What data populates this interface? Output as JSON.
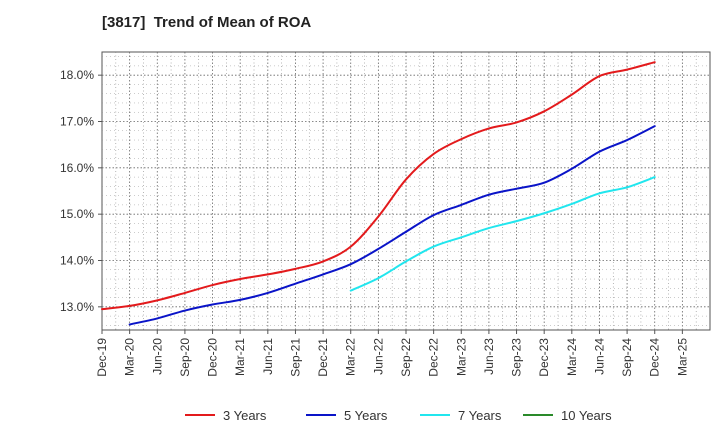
{
  "chart_data": {
    "type": "line",
    "title": "[3817]  Trend of Mean of ROA",
    "y_unit": "%",
    "ylim": [
      12.5,
      18.5
    ],
    "y_ticks": [
      "13.0%",
      "14.0%",
      "15.0%",
      "16.0%",
      "17.0%",
      "18.0%"
    ],
    "y_tick_values": [
      13,
      14,
      15,
      16,
      17,
      18
    ],
    "x_ticks": [
      "Dec-19",
      "Mar-20",
      "Jun-20",
      "Sep-20",
      "Dec-20",
      "Mar-21",
      "Jun-21",
      "Sep-21",
      "Dec-21",
      "Mar-22",
      "Jun-22",
      "Sep-22",
      "Dec-22",
      "Mar-23",
      "Jun-23",
      "Sep-23",
      "Dec-23",
      "Mar-24",
      "Jun-24",
      "Sep-24",
      "Dec-24",
      "Mar-25"
    ],
    "grid": true,
    "legend_position": "bottom",
    "series": [
      {
        "name": "3 Years",
        "color": "#e31a1c",
        "x": [
          "Dec-19",
          "Mar-20",
          "Jun-20",
          "Sep-20",
          "Dec-20",
          "Mar-21",
          "Jun-21",
          "Sep-21",
          "Dec-21",
          "Mar-22",
          "Jun-22",
          "Sep-22",
          "Dec-22",
          "Mar-23",
          "Jun-23",
          "Sep-23",
          "Dec-23",
          "Mar-24",
          "Jun-24",
          "Sep-24",
          "Dec-24"
        ],
        "values": [
          12.95,
          13.02,
          13.14,
          13.3,
          13.47,
          13.6,
          13.7,
          13.82,
          13.98,
          14.3,
          14.95,
          15.75,
          16.3,
          16.62,
          16.85,
          16.98,
          17.22,
          17.58,
          17.98,
          18.12,
          18.28
        ]
      },
      {
        "name": "5 Years",
        "color": "#0a14c8",
        "x": [
          "Mar-20",
          "Jun-20",
          "Sep-20",
          "Dec-20",
          "Mar-21",
          "Jun-21",
          "Sep-21",
          "Dec-21",
          "Mar-22",
          "Jun-22",
          "Sep-22",
          "Dec-22",
          "Mar-23",
          "Jun-23",
          "Sep-23",
          "Dec-23",
          "Mar-24",
          "Jun-24",
          "Sep-24",
          "Dec-24"
        ],
        "values": [
          12.62,
          12.75,
          12.92,
          13.05,
          13.15,
          13.3,
          13.5,
          13.7,
          13.92,
          14.25,
          14.62,
          14.98,
          15.2,
          15.42,
          15.55,
          15.68,
          15.98,
          16.35,
          16.6,
          16.9
        ]
      },
      {
        "name": "7 Years",
        "color": "#21e6ee",
        "x": [
          "Mar-22",
          "Jun-22",
          "Sep-22",
          "Dec-22",
          "Mar-23",
          "Jun-23",
          "Sep-23",
          "Dec-23",
          "Mar-24",
          "Jun-24",
          "Sep-24",
          "Dec-24"
        ],
        "values": [
          13.35,
          13.62,
          13.98,
          14.3,
          14.5,
          14.7,
          14.85,
          15.02,
          15.22,
          15.45,
          15.58,
          15.8
        ]
      },
      {
        "name": "10 Years",
        "color": "#2a8a2a",
        "x": [],
        "values": []
      }
    ]
  }
}
